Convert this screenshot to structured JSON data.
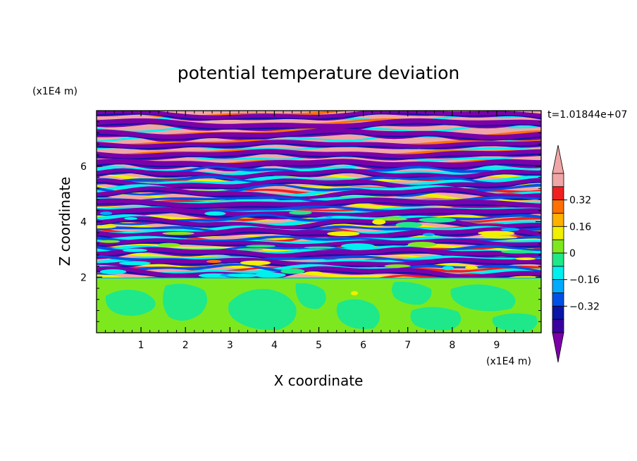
{
  "chart_data": {
    "type": "heatmap",
    "title": "potential temperature deviation",
    "xlabel": "X coordinate",
    "ylabel": "Z coordinate",
    "x_unit": "(x1E4 m)",
    "z_unit": "(x1E4 m)",
    "time_label": "t=1.01844e+07",
    "xlim": [
      0,
      10
    ],
    "zlim": [
      0,
      8
    ],
    "x_ticks": [
      "1",
      "2",
      "3",
      "4",
      "5",
      "6",
      "7",
      "8",
      "9"
    ],
    "z_ticks": [
      "2",
      "4",
      "6"
    ],
    "colorbar": {
      "levels": [
        -0.48,
        -0.4,
        -0.32,
        -0.24,
        -0.16,
        -0.08,
        0,
        0.08,
        0.16,
        0.24,
        0.32,
        0.4,
        0.48
      ],
      "tick_labels": [
        "0.32",
        "0.16",
        "0",
        "−0.16",
        "−0.32"
      ],
      "tick_values": [
        0.32,
        0.16,
        0,
        -0.16,
        -0.32
      ],
      "colors": [
        "#7b00a8",
        "#3a00a0",
        "#0a14a8",
        "#0050e6",
        "#00aaff",
        "#00f0f0",
        "#1ee88a",
        "#7ee81e",
        "#f0f000",
        "#ffb000",
        "#ff7000",
        "#f02020",
        "#f0a6a6"
      ],
      "extend": "both"
    },
    "layers": [
      {
        "z_from": 0,
        "z_to": 1.95,
        "pattern": "mixed green/light-green (near-zero deviation)"
      },
      {
        "z_from": 1.95,
        "z_to": 8,
        "pattern": "horizontally stratified bands alternating purple (negative) and pink (positive)"
      }
    ]
  }
}
